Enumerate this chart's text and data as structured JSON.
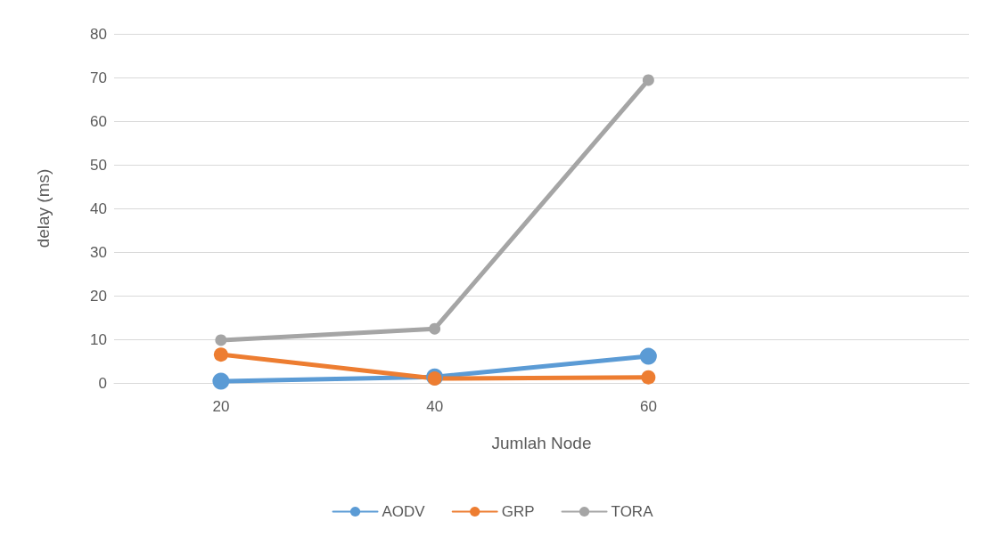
{
  "chart_data": {
    "type": "line",
    "xlabel": "Jumlah Node",
    "ylabel": "delay (ms)",
    "categories": [
      "20",
      "40",
      "60",
      null
    ],
    "series": [
      {
        "name": "AODV",
        "color": "#5b9bd5",
        "values": [
          0.4,
          1.4,
          6.1,
          null
        ]
      },
      {
        "name": "GRP",
        "color": "#ed7d31",
        "values": [
          6.5,
          1.0,
          1.3,
          null
        ]
      },
      {
        "name": "TORA",
        "color": "#a5a5a5",
        "values": [
          9.8,
          12.4,
          69.4,
          null
        ]
      }
    ],
    "ylim": [
      0,
      80
    ],
    "yticks": [
      0,
      10,
      20,
      30,
      40,
      50,
      60,
      70,
      80
    ],
    "grid": "y",
    "legend": "bottom",
    "marker": "circle",
    "line_style": "solid"
  }
}
